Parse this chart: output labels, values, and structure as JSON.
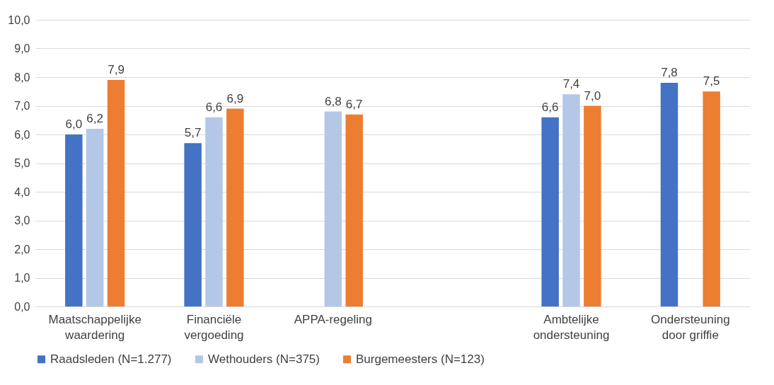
{
  "chart_data": {
    "type": "bar",
    "categories": [
      "Maatschappelijke waardering",
      "Financiële vergoeding",
      "APPA-regeling",
      null,
      "Ambtelijke ondersteuning",
      "Ondersteuning door griffie"
    ],
    "series": [
      {
        "name": "Raadsleden (N=1.277)",
        "color": "#4472c4",
        "values": [
          6.0,
          5.7,
          null,
          null,
          6.6,
          7.8
        ],
        "value_labels": [
          "6,0",
          "5,7",
          null,
          null,
          "6,6",
          "7,8"
        ]
      },
      {
        "name": "Wethouders (N=375)",
        "color": "#b4c7e7",
        "values": [
          6.2,
          6.6,
          6.8,
          null,
          7.4,
          null
        ],
        "value_labels": [
          "6,2",
          "6,6",
          "6,8",
          null,
          "7,4",
          null
        ]
      },
      {
        "name": "Burgemeesters (N=123)",
        "color": "#ed7d31",
        "values": [
          7.9,
          6.9,
          6.7,
          null,
          7.0,
          7.5
        ],
        "value_labels": [
          "7,9",
          "6,9",
          "6,7",
          null,
          "7,0",
          "7,5"
        ]
      }
    ],
    "ylim": [
      0,
      10
    ],
    "yticks": [
      {
        "value": 0,
        "label": "0,0"
      },
      {
        "value": 1,
        "label": "1,0"
      },
      {
        "value": 2,
        "label": "2,0"
      },
      {
        "value": 3,
        "label": "3,0"
      },
      {
        "value": 4,
        "label": "4,0"
      },
      {
        "value": 5,
        "label": "5,0"
      },
      {
        "value": 6,
        "label": "6,0"
      },
      {
        "value": 7,
        "label": "7,0"
      },
      {
        "value": 8,
        "label": "8,0"
      },
      {
        "value": 9,
        "label": "9,0"
      },
      {
        "value": 10,
        "label": "10,0"
      }
    ],
    "grid": "y",
    "legend": "bottom"
  }
}
